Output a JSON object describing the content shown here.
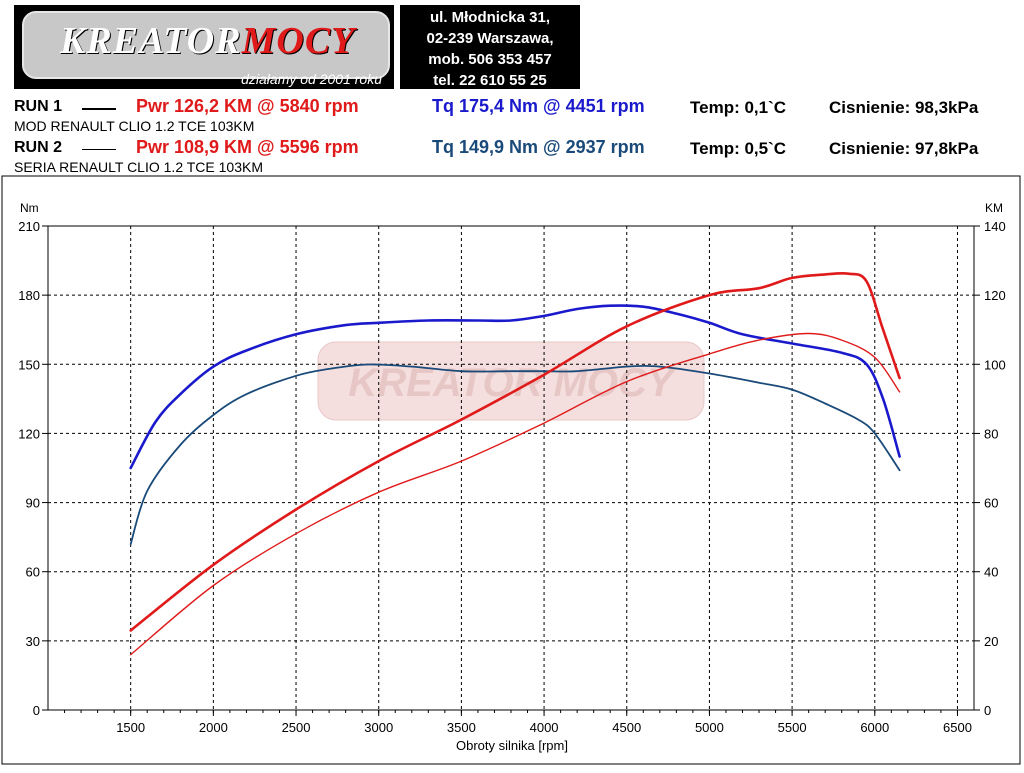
{
  "header": {
    "logo_text_main": "KREATOR",
    "logo_text_accent": "MOCY",
    "logo_slogan": "działamy od 2001 roku",
    "address_lines": [
      "ul. Młodnicka 31,",
      "02-239  Warszawa,",
      "mob.  506 353 457",
      "tel.  22 610 55 25"
    ]
  },
  "runs": [
    {
      "label": "RUN 1",
      "pwr": "Pwr  126,2 KM @ 5840 rpm",
      "tq": "Tq 175,4 Nm @ 4451 rpm",
      "temp": "Temp: 0,1`C",
      "pressure": "Cisnienie: 98,3kPa",
      "description": "MOD RENAULT CLIO 1.2 TCE 103KM",
      "tq_color": "#1a1acc"
    },
    {
      "label": "RUN 2",
      "pwr": "Pwr  108,9 KM @ 5596 rpm",
      "tq": "Tq 149,9 Nm @ 2937 rpm",
      "temp": "Temp: 0,5`C",
      "pressure": "Cisnienie: 97,8kPa",
      "description": "SERIA RENAULT CLIO 1.2 TCE 103KM",
      "tq_color": "#1a4a7a"
    }
  ],
  "chart_data": {
    "type": "line",
    "title": "",
    "xlabel": "Obroty silnika [rpm]",
    "ylabel_left": "Nm",
    "ylabel_right": "KM",
    "xlim": [
      1000,
      6600
    ],
    "ylim_left": [
      0,
      210
    ],
    "ylim_right": [
      0,
      140
    ],
    "x_ticks": [
      1500,
      2000,
      2500,
      3000,
      3500,
      4000,
      4500,
      5000,
      5500,
      6000,
      6500
    ],
    "y_ticks_left": [
      0,
      30,
      60,
      90,
      120,
      150,
      180,
      210
    ],
    "y_ticks_right": [
      0,
      20,
      40,
      60,
      80,
      100,
      120,
      140
    ],
    "grid": true,
    "watermark": "KREATOR MOCY",
    "series": [
      {
        "id": "tq-run1",
        "axis": "left",
        "color": "#1a1acc",
        "width": 2.6,
        "x": [
          1500,
          1650,
          1800,
          2000,
          2200,
          2500,
          2800,
          3000,
          3300,
          3600,
          3800,
          4000,
          4200,
          4400,
          4600,
          4800,
          5000,
          5200,
          5500,
          5800,
          5950,
          6050,
          6150
        ],
        "y": [
          105,
          125,
          137,
          149,
          156,
          163,
          167,
          168,
          169,
          169,
          169,
          171,
          174,
          175.4,
          175,
          172,
          168,
          163,
          159,
          155,
          150,
          135,
          110
        ]
      },
      {
        "id": "tq-run2",
        "axis": "left",
        "color": "#1a4a7a",
        "width": 1.8,
        "x": [
          1500,
          1600,
          1800,
          2000,
          2200,
          2500,
          2700,
          2937,
          3200,
          3500,
          3800,
          4000,
          4200,
          4500,
          4700,
          5000,
          5300,
          5500,
          5700,
          5900,
          6000,
          6150
        ],
        "y": [
          72,
          95,
          115,
          128,
          137,
          145,
          148,
          149.9,
          149,
          147,
          147,
          147,
          147,
          149,
          149,
          146,
          142,
          139,
          133,
          126,
          120,
          104
        ]
      },
      {
        "id": "pwr-run1",
        "axis": "right",
        "color": "#e01a1a",
        "width": 2.6,
        "x": [
          1500,
          2000,
          2500,
          3000,
          3500,
          4000,
          4500,
          5000,
          5300,
          5500,
          5700,
          5840,
          5950,
          6050,
          6150
        ],
        "y": [
          23,
          42,
          58,
          72,
          84,
          97,
          111,
          120,
          122,
          125,
          126,
          126.2,
          124,
          110,
          96
        ]
      },
      {
        "id": "pwr-run2",
        "axis": "right",
        "color": "#e01a1a",
        "width": 1.4,
        "x": [
          1500,
          2000,
          2500,
          3000,
          3500,
          4000,
          4500,
          5000,
          5300,
          5596,
          5800,
          6000,
          6150
        ],
        "y": [
          16,
          36,
          51,
          63,
          72,
          83,
          95,
          103,
          107,
          108.9,
          107,
          102,
          92
        ]
      }
    ]
  }
}
